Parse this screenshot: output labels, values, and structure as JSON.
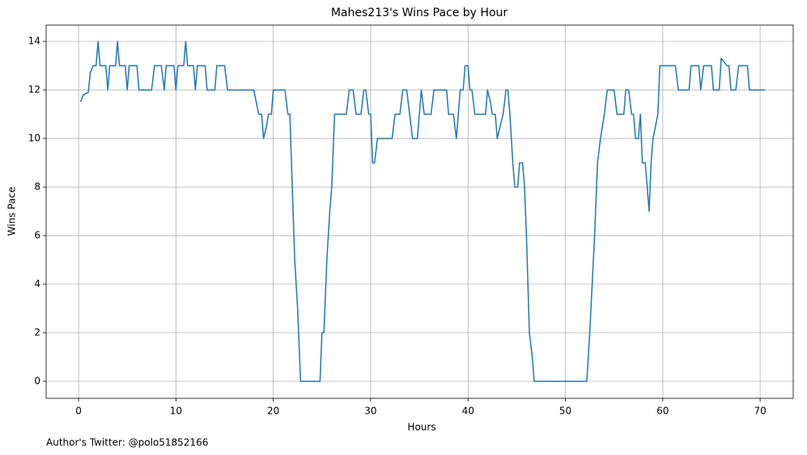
{
  "chart_data": {
    "type": "line",
    "title": "Mahes213's Wins Pace by Hour",
    "x_label": "Hours",
    "y_label": "Wins Pace",
    "footnote": "Author's Twitter: @polo51852166",
    "x": [
      0.2,
      0.5,
      1,
      1.2,
      1.5,
      1.8,
      2,
      2.2,
      2.8,
      3,
      3.2,
      3.8,
      4,
      4.2,
      4.8,
      5,
      5.2,
      6,
      6.2,
      7.5,
      7.8,
      8.5,
      8.8,
      9,
      9.8,
      10,
      10.2,
      10.8,
      11,
      11.2,
      11.8,
      12,
      12.2,
      13,
      13.2,
      14,
      14.2,
      15,
      15.3,
      18,
      18.5,
      18.8,
      19,
      19.3,
      19.5,
      19.8,
      20,
      21.2,
      21.5,
      21.7,
      22.2,
      22.5,
      22.8,
      24.8,
      25,
      25.2,
      25.5,
      25.8,
      26,
      26.3,
      27.5,
      27.8,
      28.2,
      28.5,
      29,
      29.3,
      29.5,
      29.8,
      30,
      30.2,
      30.4,
      30.7,
      32.2,
      32.5,
      33,
      33.3,
      33.7,
      34,
      34.3,
      34.8,
      35.2,
      35.5,
      36.2,
      36.5,
      37.8,
      38,
      38.5,
      38.8,
      39.2,
      39.5,
      39.7,
      40,
      40.2,
      40.4,
      40.7,
      41.8,
      42,
      42.3,
      42.5,
      42.8,
      43,
      43.3,
      43.6,
      43.9,
      44.1,
      44.3,
      44.6,
      44.8,
      45.1,
      45.3,
      45.6,
      45.8,
      46,
      46.3,
      46.6,
      46.8,
      52.2,
      52.5,
      53,
      53.3,
      53.6,
      54,
      54.3,
      55,
      55.3,
      56,
      56.2,
      56.5,
      56.8,
      57,
      57.2,
      57.5,
      57.7,
      57.9,
      58.2,
      58.6,
      58.8,
      59,
      59.5,
      59.7,
      61.3,
      61.6,
      62.7,
      62.9,
      63.7,
      63.9,
      64.2,
      65,
      65.2,
      65.8,
      66,
      66.6,
      66.8,
      67,
      67.5,
      67.8,
      68.7,
      68.9,
      70.5
    ],
    "series": [
      {
        "name": "Wins Pace",
        "color": "#1f77b4",
        "values": [
          11.5,
          11.8,
          11.9,
          12.7,
          13,
          13,
          14,
          13,
          13,
          12,
          13,
          13,
          14,
          13,
          13,
          12,
          13,
          13,
          12,
          12,
          13,
          13,
          12,
          13,
          13,
          12,
          13,
          13,
          14,
          13,
          13,
          12,
          13,
          13,
          12,
          12,
          13,
          13,
          12,
          12,
          11,
          11,
          10,
          10.5,
          11,
          11,
          12,
          12,
          11,
          11,
          5,
          3,
          0,
          0,
          2,
          2,
          5,
          7,
          8,
          11,
          11,
          12,
          12,
          11,
          11,
          12,
          12,
          11,
          11,
          9,
          9,
          10,
          10,
          11,
          11,
          12,
          12,
          11,
          10,
          10,
          12,
          11,
          11,
          12,
          12,
          11,
          11,
          10,
          12,
          12,
          13,
          13,
          12,
          12,
          11,
          11,
          12,
          11.5,
          11,
          11,
          10,
          10.5,
          11,
          12,
          12,
          11,
          9,
          8,
          8,
          9,
          9,
          8,
          6,
          2,
          1,
          0,
          0,
          2,
          6,
          9,
          10,
          11,
          12,
          12,
          11,
          11,
          12,
          12,
          11,
          11,
          10,
          10,
          11,
          9,
          9,
          7,
          9,
          10,
          11,
          13,
          13,
          12,
          12,
          13,
          13,
          12,
          13,
          13,
          12,
          12,
          13.3,
          13,
          13,
          12,
          12,
          13,
          13,
          12,
          12
        ]
      }
    ],
    "xlim": [
      -3.33,
      73.4
    ],
    "ylim": [
      -0.7,
      14.67
    ],
    "xticks": [
      0,
      10,
      20,
      30,
      40,
      50,
      60,
      70
    ],
    "yticks": [
      0,
      2,
      4,
      6,
      8,
      10,
      12,
      14
    ],
    "grid": true
  }
}
